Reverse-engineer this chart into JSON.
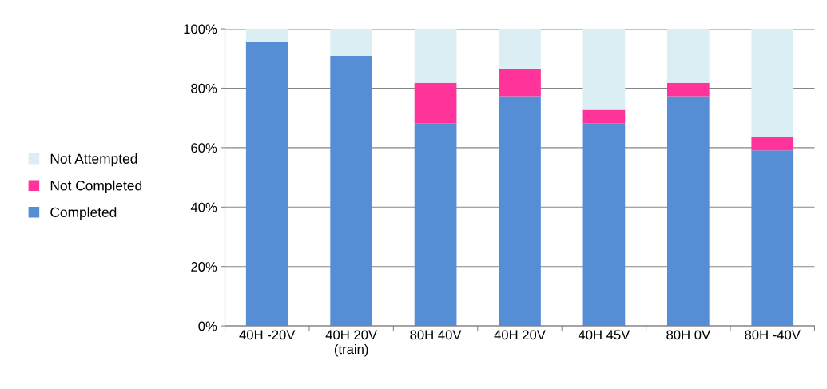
{
  "chart_data": {
    "type": "bar",
    "stacked": true,
    "categories": [
      "40H -20V",
      "40H 20V\n(train)",
      "80H 40V",
      "40H 20V",
      "40H 45V",
      "80H 0V",
      "80H -40V"
    ],
    "series": [
      {
        "name": "Completed",
        "color": "#558ed5",
        "values": [
          95.5,
          90.9,
          68.2,
          77.3,
          68.2,
          77.3,
          59.1
        ]
      },
      {
        "name": "Not Completed",
        "color": "#ff3399",
        "values": [
          0,
          0,
          13.6,
          9.1,
          4.5,
          4.5,
          4.5
        ]
      },
      {
        "name": "Not Attempted",
        "color": "#dbeef4",
        "values": [
          4.5,
          9.1,
          18.2,
          13.6,
          27.3,
          18.2,
          36.4
        ]
      }
    ],
    "ylim": [
      0,
      100
    ],
    "yticks": [
      {
        "value": 0,
        "label": "0%"
      },
      {
        "value": 20,
        "label": "20%"
      },
      {
        "value": 40,
        "label": "40%"
      },
      {
        "value": 60,
        "label": "60%"
      },
      {
        "value": 80,
        "label": "80%"
      },
      {
        "value": 100,
        "label": "100%"
      }
    ],
    "grid": "y",
    "legend": "left"
  }
}
